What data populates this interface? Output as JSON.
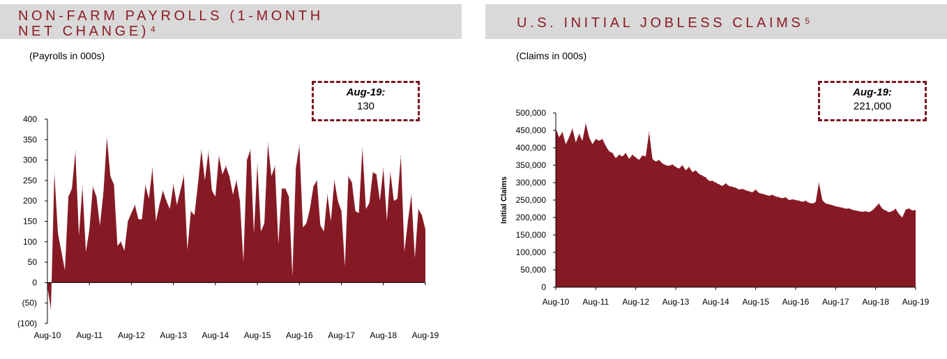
{
  "colors": {
    "header_bg": "#d9d9d9",
    "title": "#8c1c25",
    "area": "#861a24",
    "callout_border": "#7a1620"
  },
  "left": {
    "title_line1": "NON-FARM PAYROLLS (1-MONTH",
    "title_line2": "NET CHANGE)",
    "footnote": "4",
    "subtitle": "(Payrolls in 000s)",
    "callout_label": "Aug-19:",
    "callout_value": "130"
  },
  "right": {
    "title": "U.S. INITIAL JOBLESS CLAIMS",
    "footnote": "5",
    "subtitle": "(Claims in 000s)",
    "callout_label": "Aug-19:",
    "callout_value": "221,000"
  },
  "chart_data": [
    {
      "type": "area",
      "title": "NON-FARM PAYROLLS (1-MONTH NET CHANGE)",
      "ylabel": "Payrolls in 000s",
      "xlabel": "",
      "ylim": [
        -100,
        400
      ],
      "yticks": [
        400,
        350,
        300,
        250,
        200,
        150,
        100,
        50,
        0,
        -50,
        -100
      ],
      "ytick_labels": [
        "400",
        "350",
        "300",
        "250",
        "200",
        "150",
        "100",
        "50",
        "0",
        "(50)",
        "(100)"
      ],
      "xtick_labels": [
        "Aug-10",
        "Aug-11",
        "Aug-12",
        "Aug-13",
        "Aug-14",
        "Aug-15",
        "Aug-16",
        "Aug-17",
        "Aug-18",
        "Aug-19"
      ],
      "x_start": "Aug-10",
      "x_end": "Aug-19",
      "values": [
        -10,
        -65,
        268,
        120,
        75,
        30,
        210,
        230,
        320,
        115,
        235,
        75,
        130,
        235,
        210,
        140,
        220,
        355,
        260,
        240,
        90,
        100,
        78,
        150,
        170,
        190,
        155,
        155,
        238,
        205,
        280,
        150,
        190,
        225,
        200,
        180,
        240,
        190,
        225,
        262,
        80,
        175,
        165,
        240,
        325,
        250,
        320,
        225,
        210,
        310,
        265,
        285,
        260,
        215,
        250,
        200,
        50,
        300,
        325,
        120,
        290,
        125,
        145,
        340,
        260,
        285,
        95,
        230,
        230,
        210,
        15,
        280,
        335,
        135,
        145,
        180,
        235,
        250,
        140,
        125,
        215,
        150,
        250,
        200,
        175,
        40,
        260,
        245,
        175,
        170,
        330,
        180,
        195,
        270,
        265,
        200,
        280,
        150,
        270,
        200,
        205,
        310,
        75,
        150,
        215,
        60,
        180,
        165,
        130
      ]
    },
    {
      "type": "area",
      "title": "U.S. INITIAL JOBLESS CLAIMS",
      "ylabel": "Initial Claims",
      "xlabel": "",
      "ylim": [
        0,
        500000
      ],
      "yticks": [
        500000,
        450000,
        400000,
        350000,
        300000,
        250000,
        200000,
        150000,
        100000,
        50000,
        0
      ],
      "ytick_labels": [
        "500,000",
        "450,000",
        "400,000",
        "350,000",
        "300,000",
        "250,000",
        "200,000",
        "150,000",
        "100,000",
        "50,000",
        "0"
      ],
      "xtick_labels": [
        "Aug-10",
        "Aug-11",
        "Aug-12",
        "Aug-13",
        "Aug-14",
        "Aug-15",
        "Aug-16",
        "Aug-17",
        "Aug-18",
        "Aug-19"
      ],
      "x_start": "Aug-10",
      "x_end": "Aug-19",
      "values": [
        455000,
        430000,
        445000,
        410000,
        430000,
        455000,
        415000,
        440000,
        420000,
        470000,
        430000,
        410000,
        425000,
        420000,
        425000,
        405000,
        390000,
        385000,
        370000,
        380000,
        375000,
        385000,
        368000,
        380000,
        372000,
        365000,
        378000,
        375000,
        445000,
        368000,
        360000,
        365000,
        355000,
        350000,
        348000,
        352000,
        345000,
        340000,
        350000,
        335000,
        345000,
        330000,
        335000,
        325000,
        320000,
        315000,
        305000,
        305000,
        300000,
        295000,
        290000,
        298000,
        290000,
        288000,
        285000,
        280000,
        282000,
        278000,
        275000,
        272000,
        280000,
        270000,
        268000,
        265000,
        262000,
        265000,
        260000,
        258000,
        255000,
        258000,
        250000,
        252000,
        250000,
        248000,
        245000,
        248000,
        242000,
        240000,
        244000,
        300000,
        250000,
        240000,
        238000,
        235000,
        232000,
        230000,
        228000,
        225000,
        226000,
        222000,
        220000,
        218000,
        216000,
        218000,
        215000,
        220000,
        230000,
        240000,
        225000,
        220000,
        215000,
        218000,
        225000,
        210000,
        200000,
        222000,
        226000,
        220000,
        221000
      ]
    }
  ]
}
